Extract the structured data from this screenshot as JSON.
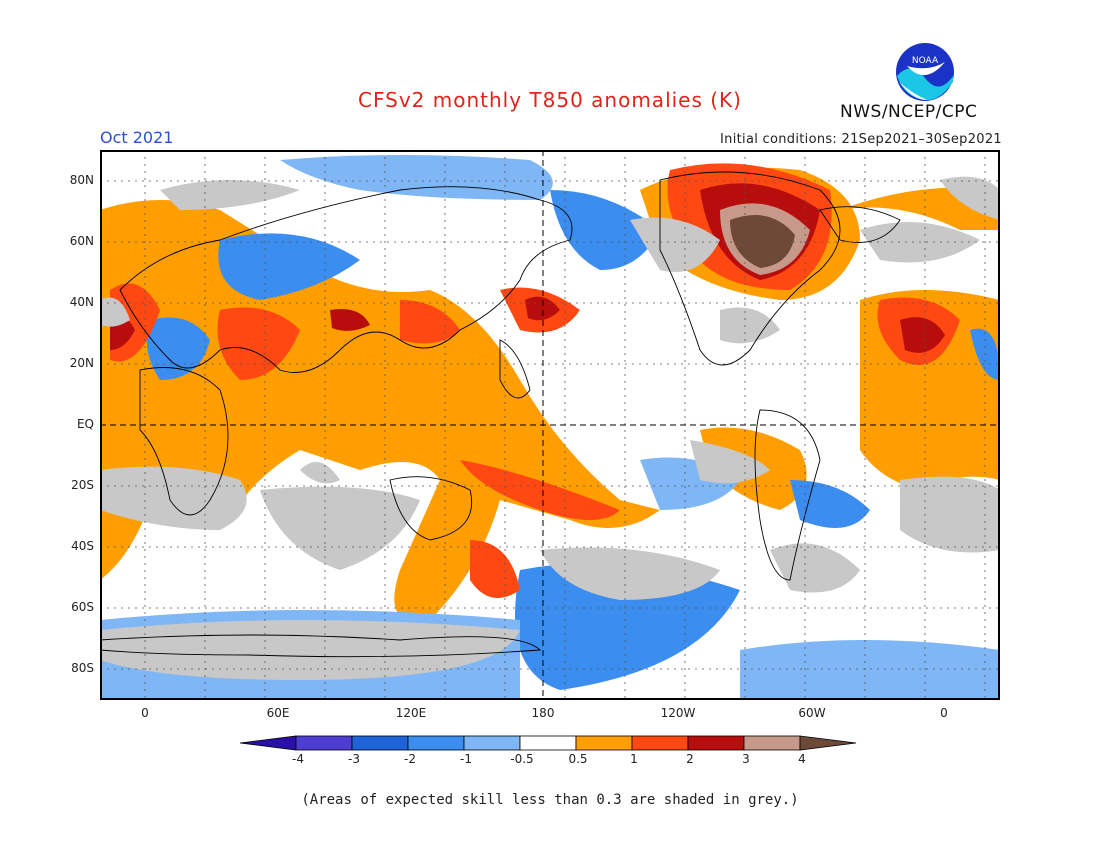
{
  "header": {
    "title": "CFSv2 monthly T850 anomalies (K)",
    "month": "Oct 2021",
    "initial_conditions": "Initial conditions: 21Sep2021–30Sep2021",
    "agency": "NWS/NCEP/CPC",
    "logo_text": "NOAA"
  },
  "map": {
    "lat_labels": [
      "80N",
      "60N",
      "40N",
      "20N",
      "EQ",
      "20S",
      "40S",
      "60S",
      "80S"
    ],
    "lon_labels": [
      "0",
      "60E",
      "120E",
      "180",
      "120W",
      "60W",
      "0"
    ]
  },
  "colorbar": {
    "labels": [
      "-4",
      "-3",
      "-2",
      "-1",
      "-0.5",
      "0.5",
      "1",
      "2",
      "3",
      "4"
    ],
    "colors": [
      "#2a0fa8",
      "#4b3ed0",
      "#1e63d8",
      "#3b8ef0",
      "#7fb6f5",
      "#ffffff",
      "#ff9e00",
      "#ff4812",
      "#b80d0d",
      "#c7998a",
      "#6e4938"
    ],
    "skill_grey": "#c8c8c8"
  },
  "footer": "(Areas of expected skill less than 0.3 are shaded in grey.)"
}
